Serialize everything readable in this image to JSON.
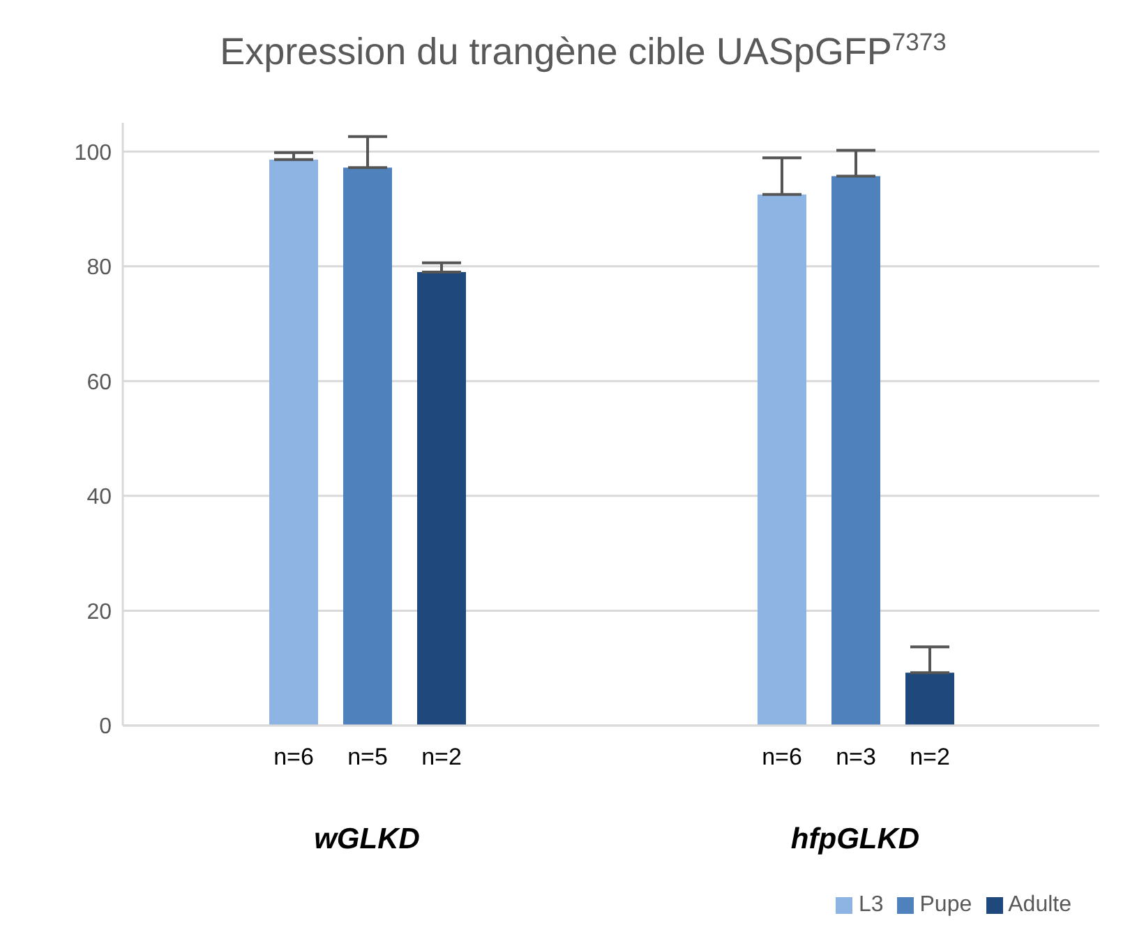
{
  "chart_data": {
    "type": "bar",
    "title": "Expression du trangène cible UASpGFP$^{7373}$",
    "categories": [
      "wGLKD",
      "hfpGLKD"
    ],
    "series": [
      {
        "name": "L3",
        "color": "#8eb4e3",
        "values": [
          98.6,
          92.5
        ],
        "errors": [
          [
            98.6,
            99.8
          ],
          [
            92.5,
            98.9
          ]
        ]
      },
      {
        "name": "Pupe",
        "color": "#4f81bd",
        "values": [
          97.2,
          95.7
        ],
        "errors": [
          [
            97.2,
            102.6
          ],
          [
            95.7,
            100.2
          ]
        ]
      },
      {
        "name": "Adulte",
        "color": "#1f497d",
        "values": [
          79.0,
          9.2
        ],
        "errors": [
          [
            79.0,
            80.6
          ],
          [
            9.2,
            13.7
          ]
        ]
      }
    ],
    "annotations": [
      "n=6",
      "n=5",
      "n=2",
      "n=6",
      "n=3",
      "n=2"
    ],
    "ylim": [
      0,
      105
    ],
    "yticks": [
      0,
      20,
      40,
      60,
      80,
      100
    ],
    "grid": "y",
    "legend": "bottom right"
  }
}
